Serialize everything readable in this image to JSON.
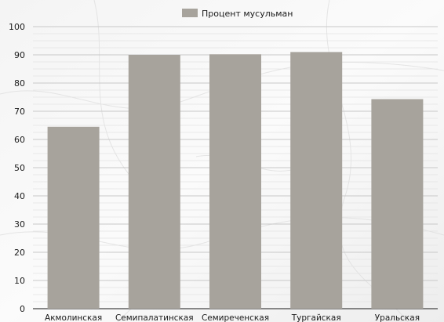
{
  "chart_data": {
    "type": "bar",
    "categories": [
      "Акмолинская",
      "Семипалатинская",
      "Семиреченская",
      "Тургайская",
      "Уральская"
    ],
    "series": [
      {
        "name": "Процент мусульман",
        "values": [
          64.5,
          90,
          90.2,
          91,
          74.3
        ]
      }
    ],
    "ylim": [
      0,
      100
    ],
    "yticks": [
      0,
      10,
      20,
      30,
      40,
      50,
      60,
      70,
      80,
      90,
      100
    ],
    "grid": true,
    "legend_position": "top-center",
    "colors": {
      "bar": "#a7a39c",
      "grid": "#c8c8c8",
      "text": "#1a1a1a"
    }
  }
}
